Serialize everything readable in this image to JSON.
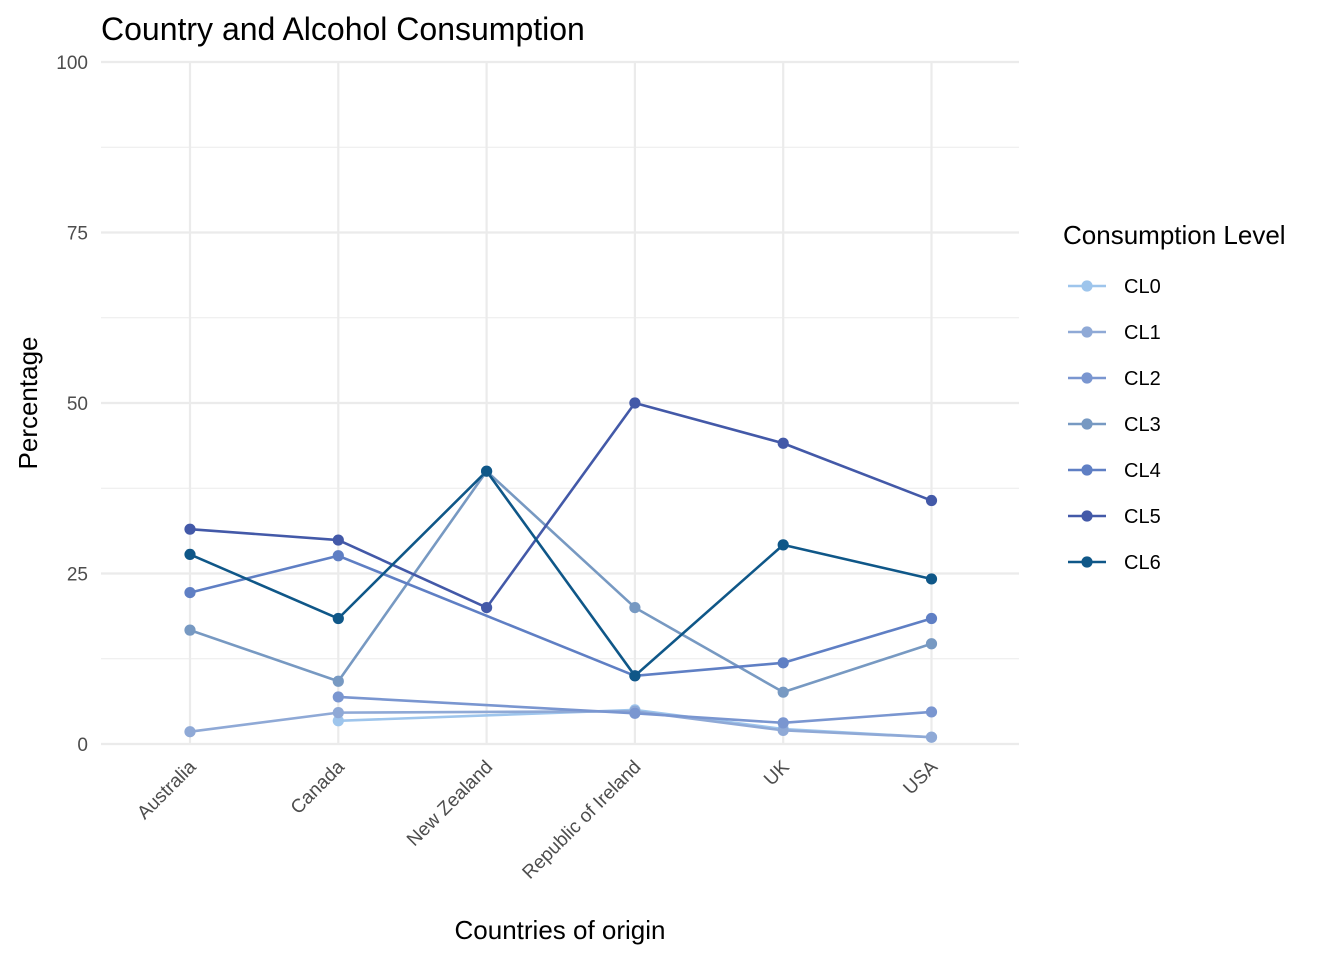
{
  "chart_data": {
    "type": "line",
    "title": "Country and Alcohol Consumption",
    "xlabel": "Countries of origin",
    "ylabel": "Percentage",
    "ylim": [
      0,
      100
    ],
    "yticks": [
      "0",
      "25",
      "50",
      "75",
      "100"
    ],
    "categories": [
      "Australia",
      "Canada",
      "New Zealand",
      "Republic of Ireland",
      "UK",
      "USA"
    ],
    "grid": true,
    "legend": {
      "title": "Consumption Level",
      "placement": "right"
    },
    "series": [
      {
        "name": "CL0",
        "color": "#9ec5ec",
        "values": [
          null,
          3.4,
          null,
          5.0,
          2.2,
          1.0
        ]
      },
      {
        "name": "CL1",
        "color": "#8fa9d6",
        "values": [
          1.8,
          4.6,
          null,
          4.8,
          2.0,
          1.0
        ]
      },
      {
        "name": "CL2",
        "color": "#7a96d0",
        "values": [
          null,
          6.9,
          null,
          4.5,
          3.1,
          4.7
        ]
      },
      {
        "name": "CL3",
        "color": "#7799c2",
        "values": [
          16.7,
          9.2,
          40.0,
          20.0,
          7.6,
          14.7
        ]
      },
      {
        "name": "CL4",
        "color": "#5f7fc4",
        "values": [
          22.2,
          27.6,
          null,
          10.0,
          11.9,
          18.4
        ]
      },
      {
        "name": "CL5",
        "color": "#4359a8",
        "values": [
          31.5,
          29.9,
          20.0,
          50.0,
          44.1,
          35.7
        ]
      },
      {
        "name": "CL6",
        "color": "#0f5788",
        "values": [
          27.8,
          18.4,
          40.0,
          10.0,
          29.2,
          24.2
        ]
      }
    ]
  }
}
